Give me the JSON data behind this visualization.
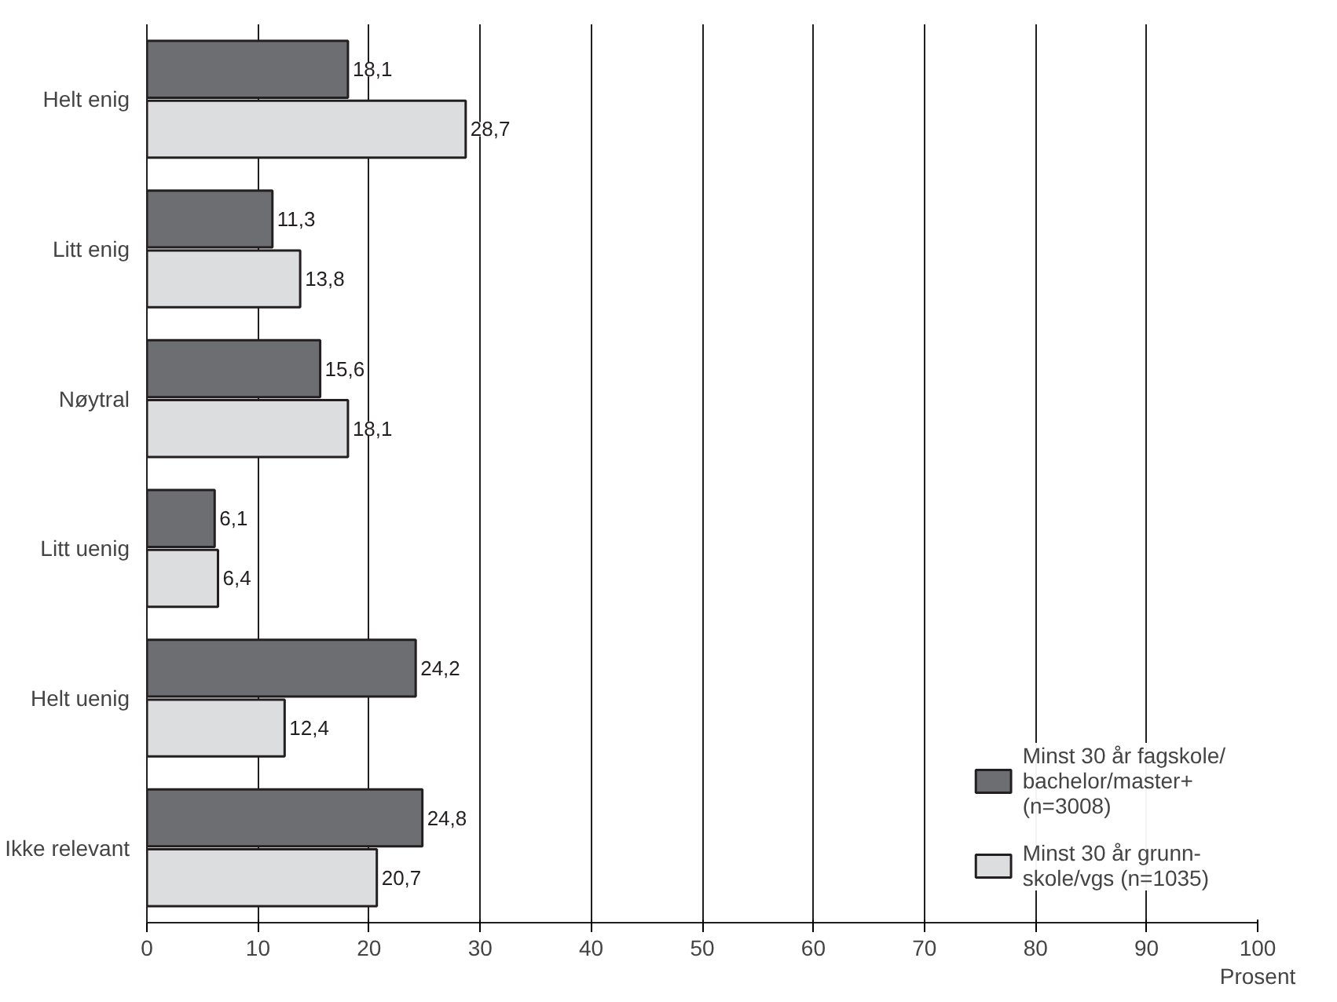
{
  "chart_data": {
    "type": "bar",
    "orientation": "horizontal",
    "xlabel": "Prosent",
    "categories": [
      "Helt enig",
      "Litt enig",
      "Nøytral",
      "Litt uenig",
      "Helt uenig",
      "Ikke relevant"
    ],
    "series": [
      {
        "name": "Minst 30 år fagskole/\nbachelor/master+\n(n=3008)",
        "color": "#6d6e71",
        "values": [
          18.1,
          11.3,
          15.6,
          6.1,
          24.2,
          24.8
        ],
        "value_labels": [
          "18,1",
          "11,3",
          "15,6",
          "6,1",
          "24,2",
          "24,8"
        ]
      },
      {
        "name": "Minst 30 år grunn-\nskole/vgs (n=1035)",
        "color": "#dcddde",
        "values": [
          28.7,
          13.8,
          18.1,
          6.4,
          12.4,
          20.7
        ],
        "value_labels": [
          "28,7",
          "13,8",
          "18,1",
          "6,4",
          "12,4",
          "20,7"
        ]
      }
    ],
    "xlim": [
      0,
      100
    ],
    "xticks": [
      0,
      10,
      20,
      30,
      40,
      50,
      60,
      70,
      80,
      90,
      100
    ],
    "grid": "x",
    "legend": "bottom right"
  }
}
